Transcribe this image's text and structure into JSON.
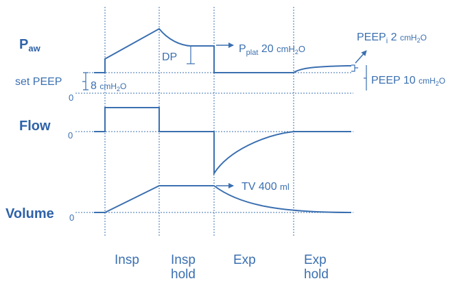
{
  "colors": {
    "trace": "#3a6fb0",
    "title": "#2f62a8",
    "background": "#ffffff"
  },
  "labels": {
    "paw_main": "P",
    "paw_sub": "aw",
    "flow": "Flow",
    "volume": "Volume",
    "zero": "0"
  },
  "annotations": {
    "dp": "DP",
    "pplat_main": "P",
    "pplat_sub": "plat",
    "pplat_value": " 20 ",
    "pplat_unit": "cmH₂O",
    "pplat_unit_main": "cmH",
    "pplat_unit_sub": "2",
    "pplat_unit_end": "O",
    "peepi_main": "PEEP",
    "peepi_sub": "i",
    "peepi_value": " 2 ",
    "peepi_unit_main": "cmH",
    "peepi_unit_sub": "2",
    "peepi_unit_end": "O",
    "peep_total_text": "PEEP 10 ",
    "peep_total_unit_main": "cmH",
    "peep_total_unit_sub": "2",
    "peep_total_unit_end": "O",
    "set_peep": "set PEEP",
    "set_peep_value": "8 ",
    "set_peep_unit_main": "cmH",
    "set_peep_unit_sub": "2",
    "set_peep_unit_end": "O",
    "tv_text": "TV   400 ",
    "tv_unit": "ml"
  },
  "phases": {
    "insp": "Insp",
    "insp_hold_1": "Insp",
    "insp_hold_2": "hold",
    "exp": "Exp",
    "exp_hold_1": "Exp",
    "exp_hold_2": "hold"
  }
}
